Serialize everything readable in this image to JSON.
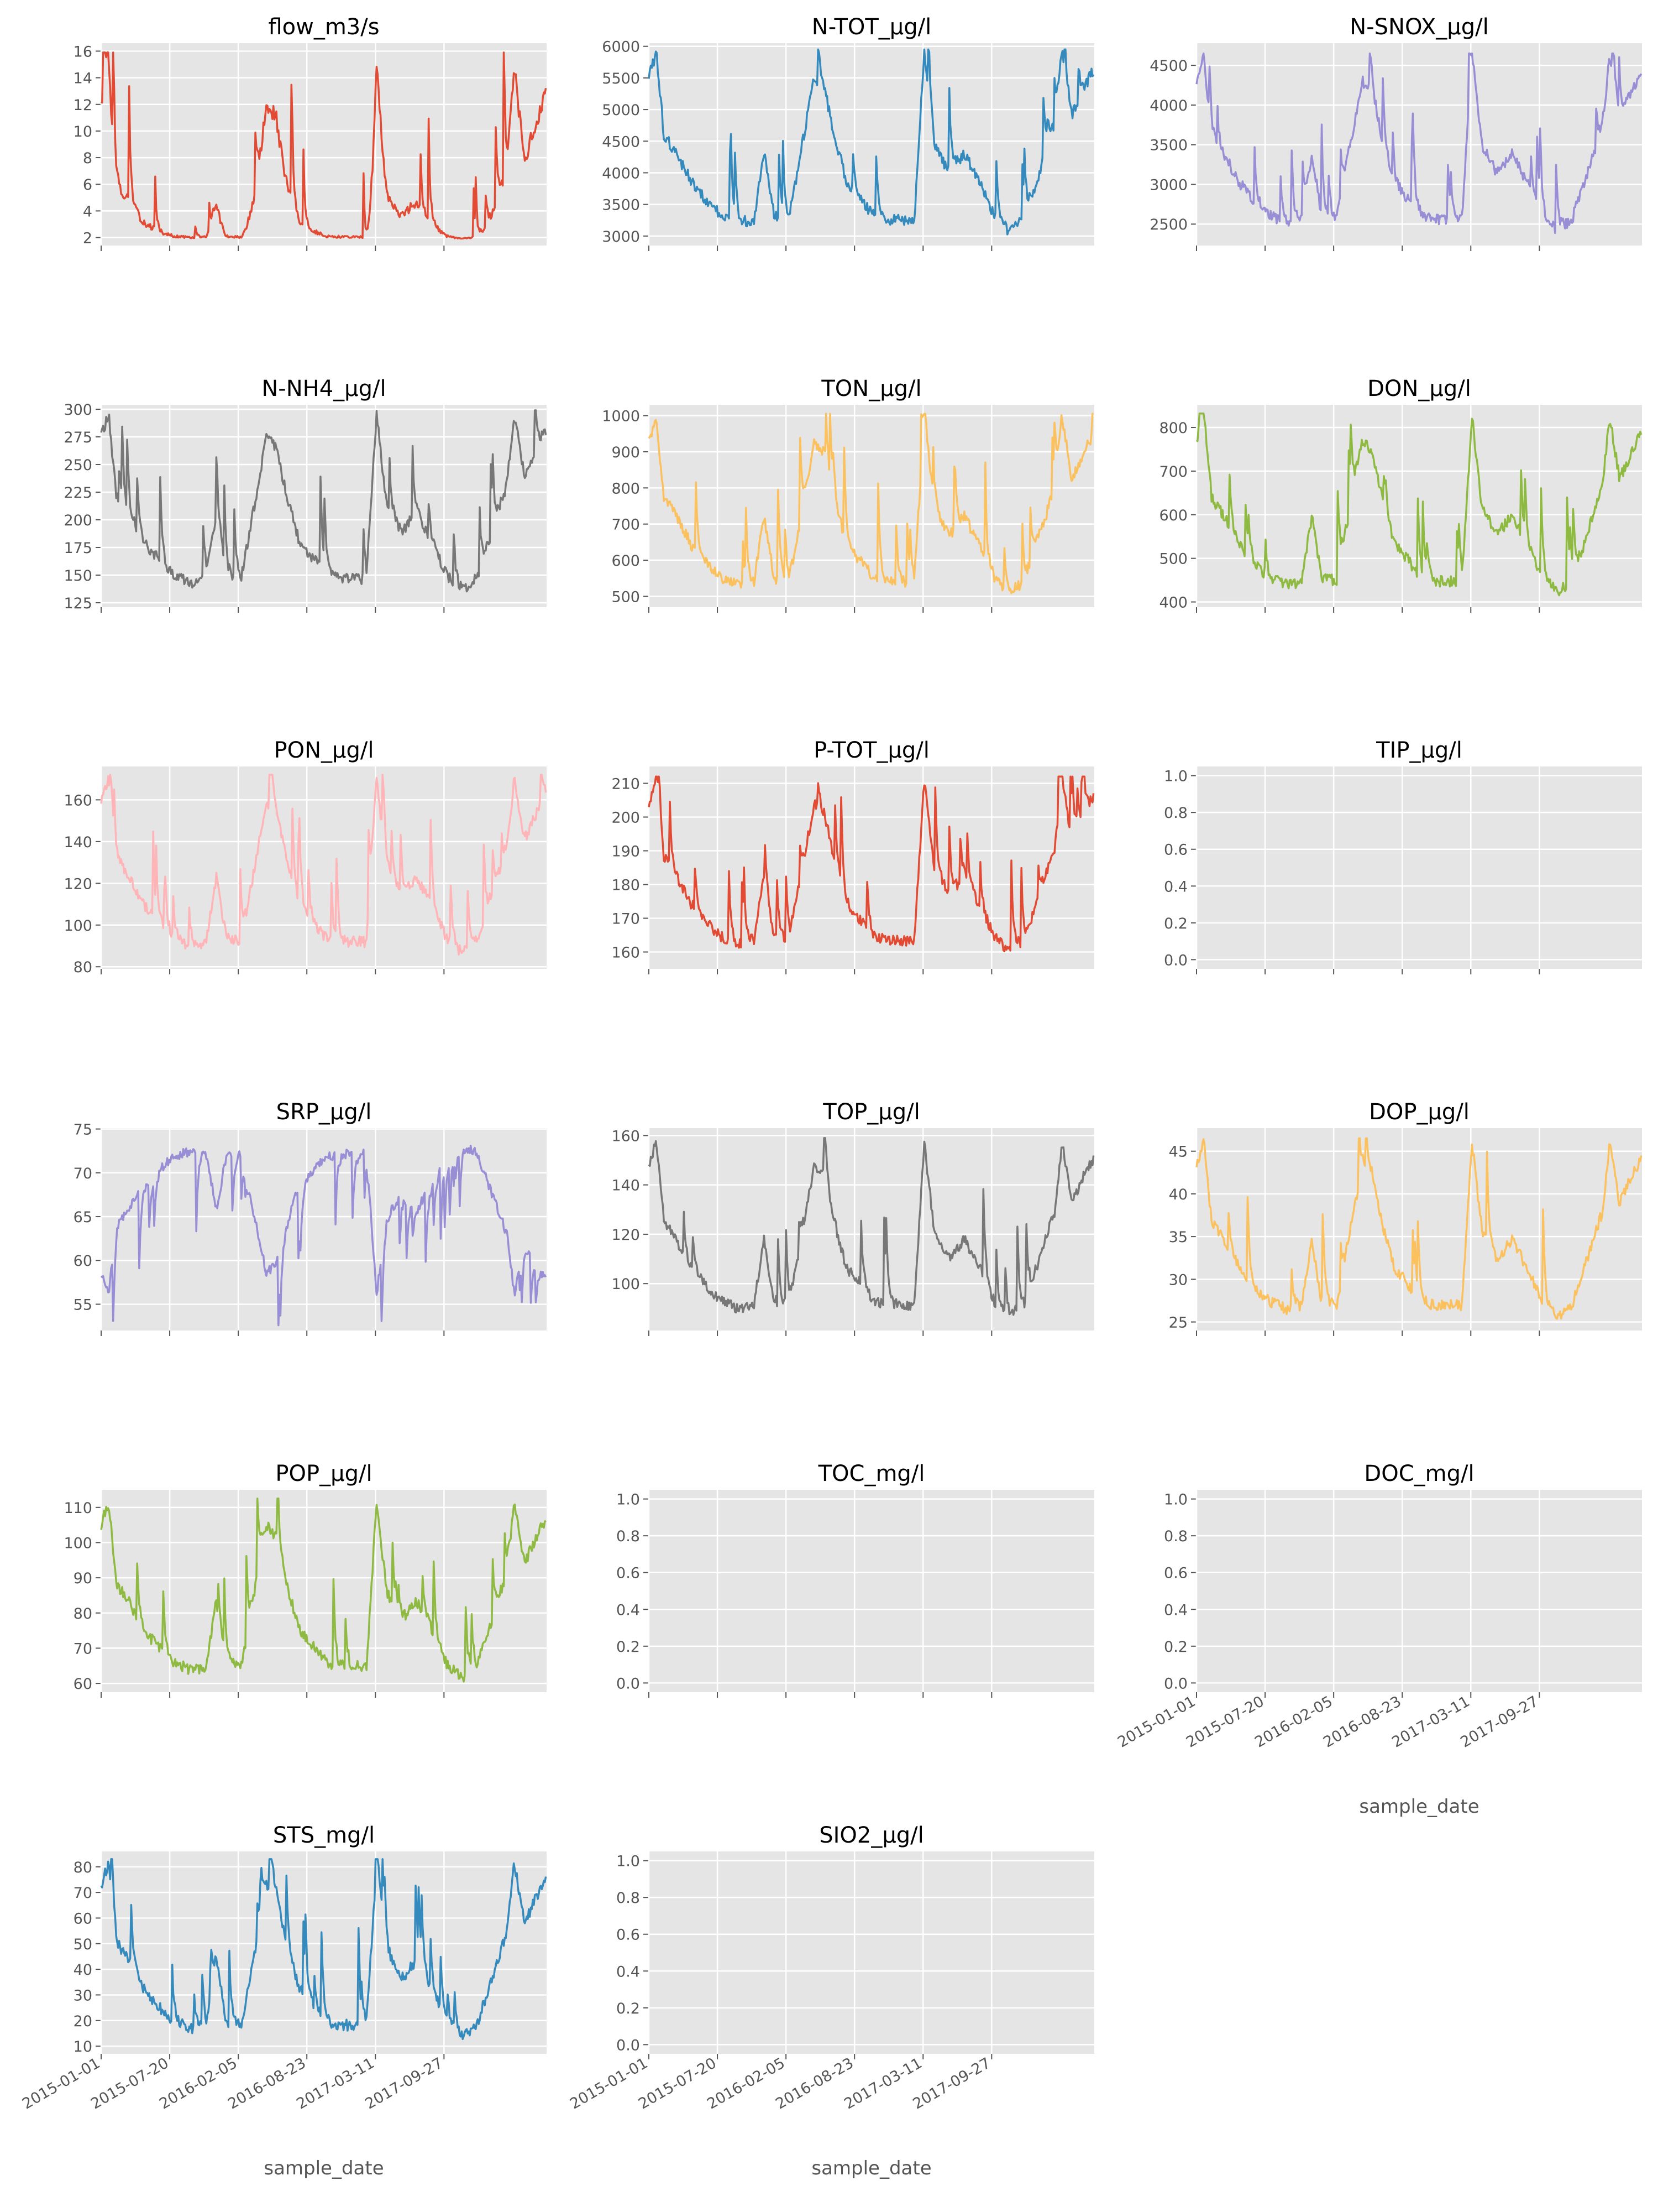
{
  "figure": {
    "style": "ggplot",
    "x_axis_label": "sample_date",
    "x_tick_labels": [
      "2015-01-01",
      "2015-07-20",
      "2016-02-05",
      "2016-08-23",
      "2017-03-11",
      "2017-09-27"
    ],
    "colors": {
      "panel_background": "#e5e5e5",
      "grid": "#ffffff",
      "tick_text": "#555555",
      "title_text": "#000000"
    }
  },
  "chart_data": [
    {
      "type": "line",
      "title": "flow_m3/s",
      "xlabel": "",
      "ylabel": "",
      "x_range": [
        "2015-01-01",
        "2018-05-01"
      ],
      "ylim": [
        1.4,
        16.6
      ],
      "yticks": [
        2,
        4,
        6,
        8,
        10,
        12,
        14,
        16
      ],
      "has_data": true,
      "color": "#E24A33",
      "shape": "flow",
      "min": 1.9,
      "max": 15.9,
      "grid": true,
      "series": [
        {
          "values": [
            [
              15.9,
              8
            ],
            [
              13,
              40
            ],
            [
              8,
              70
            ],
            [
              11,
              100
            ],
            [
              6,
              140
            ],
            [
              4.5,
              180
            ],
            [
              5,
              210
            ],
            [
              3.5,
              260
            ],
            [
              5,
              300
            ],
            [
              2.8,
              340
            ],
            [
              3.2,
              380
            ],
            [
              2.5,
              420
            ],
            [
              7.5,
              450
            ],
            [
              5,
              470
            ],
            [
              2.5,
              520
            ],
            [
              2.6,
              560
            ],
            [
              6,
              620
            ],
            [
              13,
              650
            ],
            [
              9,
              680
            ],
            [
              14,
              720
            ],
            [
              8,
              760
            ],
            [
              5,
              790
            ],
            [
              4,
              830
            ],
            [
              3.5,
              870
            ],
            [
              3,
              910
            ],
            [
              2.5,
              950
            ],
            [
              3.6,
              990
            ],
            [
              2.2,
              1030
            ],
            [
              2.3,
              1070
            ],
            [
              16,
              1100
            ],
            [
              7,
              1130
            ],
            [
              5,
              1170
            ],
            [
              11,
              1220
            ],
            [
              4,
              1270
            ],
            [
              6,
              1300
            ],
            [
              4,
              1340
            ],
            [
              3,
              1380
            ],
            [
              2.2,
              1420
            ],
            [
              2,
              1460
            ],
            [
              3,
              1510
            ],
            [
              6,
              1550
            ],
            [
              9,
              1600
            ],
            [
              16,
              1640
            ],
            [
              8,
              1670
            ],
            [
              14.2,
              1700
            ],
            [
              10,
              1740
            ],
            [
              6,
              1760
            ],
            [
              12.5,
              1774
            ]
          ]
        }
      ]
    },
    {
      "type": "line",
      "title": "N-TOT_µg/l",
      "xlabel": "",
      "ylabel": "",
      "x_range": [
        "2015-01-01",
        "2018-05-01"
      ],
      "ylim": [
        2850,
        6050
      ],
      "yticks": [
        3000,
        3500,
        4000,
        4500,
        5000,
        5500,
        6000
      ],
      "has_data": true,
      "color": "#348ABD",
      "shape": "nutrient",
      "min": 2960,
      "max": 5950,
      "grid": true
    },
    {
      "type": "line",
      "title": "N-SNOX_µg/l",
      "xlabel": "",
      "ylabel": "",
      "x_range": [
        "2015-01-01",
        "2018-05-01"
      ],
      "ylim": [
        2230,
        4780
      ],
      "yticks": [
        2500,
        3000,
        3500,
        4000,
        4500
      ],
      "has_data": true,
      "color": "#988ED5",
      "shape": "nutrient",
      "min": 2330,
      "max": 4650,
      "grid": true
    },
    {
      "type": "line",
      "title": "N-NH4_µg/l",
      "xlabel": "",
      "ylabel": "",
      "x_range": [
        "2015-01-01",
        "2018-05-01"
      ],
      "ylim": [
        121,
        304
      ],
      "yticks": [
        125,
        150,
        175,
        200,
        225,
        250,
        275,
        300
      ],
      "has_data": true,
      "color": "#777777",
      "shape": "nutrient",
      "min": 130,
      "max": 299,
      "grid": true
    },
    {
      "type": "line",
      "title": "TON_µg/l",
      "xlabel": "",
      "ylabel": "",
      "x_range": [
        "2015-01-01",
        "2018-05-01"
      ],
      "ylim": [
        470,
        1030
      ],
      "yticks": [
        500,
        600,
        700,
        800,
        900,
        1000
      ],
      "has_data": true,
      "color": "#FBC15E",
      "shape": "nutrient",
      "min": 488,
      "max": 1005,
      "grid": true
    },
    {
      "type": "line",
      "title": "DON_µg/l",
      "xlabel": "",
      "ylabel": "",
      "x_range": [
        "2015-01-01",
        "2018-05-01"
      ],
      "ylim": [
        388,
        852
      ],
      "yticks": [
        400,
        500,
        600,
        700,
        800
      ],
      "has_data": true,
      "color": "#8EBA42",
      "shape": "nutrient",
      "min": 405,
      "max": 832,
      "grid": true
    },
    {
      "type": "line",
      "title": "PON_µg/l",
      "xlabel": "",
      "ylabel": "",
      "x_range": [
        "2015-01-01",
        "2018-05-01"
      ],
      "ylim": [
        79,
        176
      ],
      "yticks": [
        80,
        100,
        120,
        140,
        160
      ],
      "has_data": true,
      "color": "#FFB5B8",
      "shape": "nutrient",
      "min": 83,
      "max": 172,
      "grid": true
    },
    {
      "type": "line",
      "title": "P-TOT_µg/l",
      "xlabel": "",
      "ylabel": "",
      "x_range": [
        "2015-01-01",
        "2018-05-01"
      ],
      "ylim": [
        155,
        215
      ],
      "yticks": [
        160,
        170,
        180,
        190,
        200,
        210
      ],
      "has_data": true,
      "color": "#E24A33",
      "shape": "nutrient",
      "min": 158,
      "max": 212,
      "grid": true
    },
    {
      "type": "line",
      "title": "TIP_µg/l",
      "xlabel": "",
      "ylabel": "",
      "x_range": [
        "2015-01-01",
        "2018-05-01"
      ],
      "ylim": [
        -0.05,
        1.05
      ],
      "yticks": [
        0.0,
        0.2,
        0.4,
        0.6,
        0.8,
        1.0
      ],
      "has_data": false,
      "grid": true
    },
    {
      "type": "line",
      "title": "SRP_µg/l",
      "xlabel": "",
      "ylabel": "",
      "x_range": [
        "2015-01-01",
        "2018-05-01"
      ],
      "ylim": [
        52,
        75.1
      ],
      "yticks": [
        55,
        60,
        65,
        70,
        75
      ],
      "has_data": true,
      "color": "#988ED5",
      "shape": "srp",
      "min": 52.6,
      "max": 74,
      "grid": true
    },
    {
      "type": "line",
      "title": "TOP_µg/l",
      "xlabel": "",
      "ylabel": "",
      "x_range": [
        "2015-01-01",
        "2018-05-01"
      ],
      "ylim": [
        81,
        163
      ],
      "yticks": [
        100,
        120,
        140,
        160
      ],
      "has_data": true,
      "color": "#777777",
      "shape": "nutrient",
      "min": 84,
      "max": 159,
      "grid": true
    },
    {
      "type": "line",
      "title": "DOP_µg/l",
      "xlabel": "",
      "ylabel": "",
      "x_range": [
        "2015-01-01",
        "2018-05-01"
      ],
      "ylim": [
        24,
        47.7
      ],
      "yticks": [
        25,
        30,
        35,
        40,
        45
      ],
      "has_data": true,
      "color": "#FBC15E",
      "shape": "nutrient",
      "min": 24.8,
      "max": 46.5,
      "grid": true
    },
    {
      "type": "line",
      "title": "POP_µg/l",
      "xlabel": "",
      "ylabel": "",
      "x_range": [
        "2015-01-01",
        "2018-05-01"
      ],
      "ylim": [
        57.5,
        115
      ],
      "yticks": [
        60,
        70,
        80,
        90,
        100,
        110
      ],
      "has_data": true,
      "color": "#8EBA42",
      "shape": "nutrient",
      "min": 59.5,
      "max": 112.5,
      "grid": true
    },
    {
      "type": "line",
      "title": "TOC_mg/l",
      "xlabel": "",
      "ylabel": "",
      "x_range": [
        "2015-01-01",
        "2018-05-01"
      ],
      "ylim": [
        -0.05,
        1.05
      ],
      "yticks": [
        0.0,
        0.2,
        0.4,
        0.6,
        0.8,
        1.0
      ],
      "has_data": false,
      "grid": true
    },
    {
      "type": "line",
      "title": "DOC_mg/l",
      "xlabel": "sample_date",
      "ylabel": "",
      "x_range": [
        "2015-01-01",
        "2018-05-01"
      ],
      "ylim": [
        -0.05,
        1.05
      ],
      "yticks": [
        0.0,
        0.2,
        0.4,
        0.6,
        0.8,
        1.0
      ],
      "has_data": false,
      "grid": true
    },
    {
      "type": "line",
      "title": "STS_mg/l",
      "xlabel": "sample_date",
      "ylabel": "",
      "x_range": [
        "2015-01-01",
        "2018-05-01"
      ],
      "ylim": [
        7,
        86
      ],
      "yticks": [
        10,
        20,
        30,
        40,
        50,
        60,
        70,
        80
      ],
      "has_data": true,
      "color": "#348ABD",
      "shape": "nutrient",
      "min": 11,
      "max": 83,
      "grid": true
    },
    {
      "type": "line",
      "title": "SIO2_µg/l",
      "xlabel": "sample_date",
      "ylabel": "",
      "x_range": [
        "2015-01-01",
        "2018-05-01"
      ],
      "ylim": [
        -0.05,
        1.05
      ],
      "yticks": [
        0.0,
        0.2,
        0.4,
        0.6,
        0.8,
        1.0
      ],
      "has_data": false,
      "grid": true
    }
  ]
}
